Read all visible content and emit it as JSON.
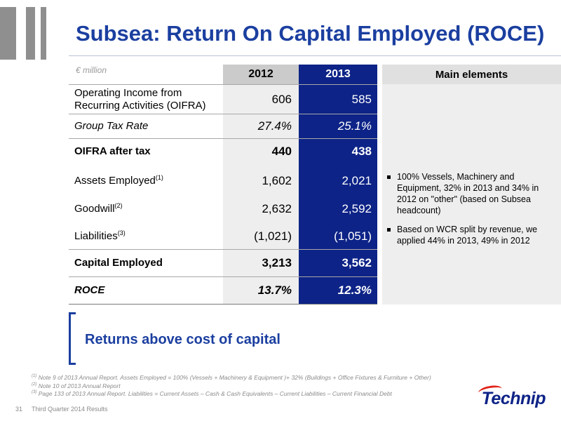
{
  "title": "Subsea: Return On Capital Employed (ROCE)",
  "table": {
    "unit_label": "€ million",
    "headers": {
      "y2012": "2012",
      "y2013": "2013",
      "main": "Main elements"
    },
    "rows": [
      {
        "label_line1": "Operating Income from",
        "label_line2": "Recurring Activities (OIFRA)",
        "v2012": "606",
        "v2013": "585"
      },
      {
        "label": "Group Tax Rate",
        "v2012": "27.4%",
        "v2013": "25.1%"
      },
      {
        "label": "OIFRA after tax",
        "v2012": "440",
        "v2013": "438"
      },
      {
        "label": "Assets Employed",
        "sup": "(1)",
        "v2012": "1,602",
        "v2013": "2,021"
      },
      {
        "label": "Goodwill",
        "sup": "(2)",
        "v2012": "2,632",
        "v2013": "2,592"
      },
      {
        "label": "Liabilities",
        "sup": "(3)",
        "v2012": "(1,021)",
        "v2013": "(1,051)"
      },
      {
        "label": "Capital Employed",
        "v2012": "3,213",
        "v2013": "3,562"
      },
      {
        "label": "ROCE",
        "v2012": "13.7%",
        "v2013": "12.3%"
      }
    ]
  },
  "main_elements": [
    "100% Vessels, Machinery and Equipment, 32% in 2013 and 34% in 2012 on \"other\" (based on Subsea headcount)",
    "Based on WCR split by revenue, we applied 44% in 2013, 49% in 2012"
  ],
  "callout": "Returns above cost of capital",
  "notes": [
    {
      "sup": "(1)",
      "text": " Note 9 of 2013 Annual Report. Assets Employed = 100% (Vessels + Machinery & Equipment )+ 32% (Buildings + Office Fixtures & Furniture + Other)"
    },
    {
      "sup": "(2)",
      "text": " Note 10 of 2013 Annual Report"
    },
    {
      "sup": "(3)",
      "text": " Page 133 of 2013 Annual Report. Liabilities = Current Assets – Cash & Cash Equivalents – Current Liabilities – Current Financial Debt"
    }
  ],
  "footer": {
    "page_number": "31",
    "text": "Third Quarter 2014 Results"
  },
  "brand": {
    "name": "Technip"
  },
  "colors": {
    "title_blue": "#1b3fa0",
    "col_2013_navy": "#0d2387",
    "grey_bars": "#8f8f8f",
    "logo_red": "#e2231a"
  }
}
